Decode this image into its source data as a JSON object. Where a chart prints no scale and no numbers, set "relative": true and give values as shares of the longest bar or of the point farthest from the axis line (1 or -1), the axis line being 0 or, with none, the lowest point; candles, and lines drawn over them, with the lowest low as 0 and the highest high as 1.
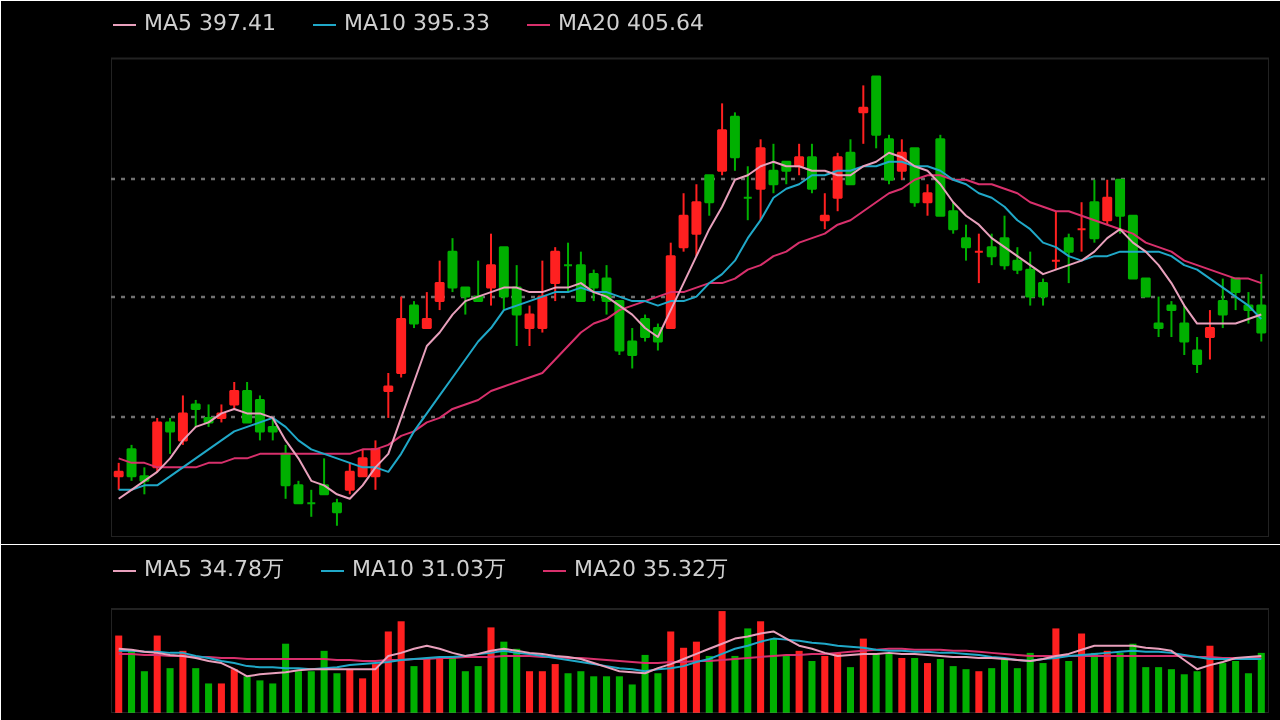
{
  "chart_data": [
    {
      "type": "candlestick",
      "relative": true,
      "grid": "y",
      "legend": "top left",
      "categories": [
        null,
        null,
        null,
        null,
        null,
        null,
        null,
        null,
        null,
        null,
        null,
        null,
        null,
        null,
        null,
        null,
        null,
        null,
        null,
        null,
        null,
        null,
        null,
        null,
        null,
        null,
        null,
        null,
        null,
        null,
        null,
        null,
        null,
        null,
        null,
        null,
        null,
        null,
        null,
        null,
        null,
        null,
        null,
        null,
        null,
        null,
        null,
        null,
        null,
        null,
        null,
        null,
        null,
        null,
        null,
        null,
        null,
        null,
        null,
        null,
        null,
        null,
        null,
        null,
        null,
        null,
        null,
        null,
        null,
        null,
        null,
        null,
        null,
        null,
        null,
        null,
        null,
        null,
        null,
        null,
        null,
        null,
        null,
        null,
        null,
        null,
        null,
        null,
        null,
        null
      ],
      "ohlc": [
        [
          0.11,
          0.14,
          0.08,
          0.12
        ],
        [
          0.17,
          0.18,
          0.1,
          0.11
        ],
        [
          0.11,
          0.13,
          0.07,
          0.1
        ],
        [
          0.13,
          0.24,
          0.12,
          0.23
        ],
        [
          0.23,
          0.24,
          0.16,
          0.21
        ],
        [
          0.19,
          0.29,
          0.18,
          0.25
        ],
        [
          0.27,
          0.28,
          0.22,
          0.26
        ],
        [
          0.24,
          0.27,
          0.22,
          0.23
        ],
        [
          0.24,
          0.27,
          0.23,
          0.25
        ],
        [
          0.27,
          0.32,
          0.26,
          0.3
        ],
        [
          0.3,
          0.32,
          0.23,
          0.23
        ],
        [
          0.28,
          0.29,
          0.19,
          0.21
        ],
        [
          0.22,
          0.24,
          0.19,
          0.21
        ],
        [
          0.16,
          0.18,
          0.06,
          0.09
        ],
        [
          0.09,
          0.1,
          0.05,
          0.05
        ],
        [
          0.05,
          0.08,
          0.02,
          0.05
        ],
        [
          0.09,
          0.15,
          0.07,
          0.07
        ],
        [
          0.05,
          0.06,
          0,
          0.03
        ],
        [
          0.08,
          0.14,
          0.07,
          0.12
        ],
        [
          0.11,
          0.17,
          0.11,
          0.15
        ],
        [
          0.11,
          0.19,
          0.08,
          0.17
        ],
        [
          0.3,
          0.34,
          0.24,
          0.31
        ],
        [
          0.34,
          0.51,
          0.33,
          0.46
        ],
        [
          0.49,
          0.5,
          0.44,
          0.45
        ],
        [
          0.44,
          0.52,
          0.44,
          0.46
        ],
        [
          0.5,
          0.59,
          0.48,
          0.54
        ],
        [
          0.61,
          0.64,
          0.52,
          0.53
        ],
        [
          0.53,
          0.53,
          0.47,
          0.51
        ],
        [
          0.51,
          0.59,
          0.5,
          0.5
        ],
        [
          0.53,
          0.65,
          0.49,
          0.58
        ],
        [
          0.62,
          0.62,
          0.48,
          0.51
        ],
        [
          0.53,
          0.58,
          0.4,
          0.47
        ],
        [
          0.44,
          0.49,
          0.4,
          0.47
        ],
        [
          0.44,
          0.59,
          0.43,
          0.51
        ],
        [
          0.54,
          0.62,
          0.5,
          0.61
        ],
        [
          0.58,
          0.63,
          0.52,
          0.58
        ],
        [
          0.58,
          0.61,
          0.5,
          0.5
        ],
        [
          0.56,
          0.57,
          0.5,
          0.53
        ],
        [
          0.55,
          0.58,
          0.47,
          0.5
        ],
        [
          0.5,
          0.5,
          0.38,
          0.39
        ],
        [
          0.41,
          0.44,
          0.35,
          0.38
        ],
        [
          0.46,
          0.47,
          0.41,
          0.42
        ],
        [
          0.44,
          0.45,
          0.39,
          0.41
        ],
        [
          0.44,
          0.63,
          0.44,
          0.6
        ],
        [
          0.62,
          0.74,
          0.61,
          0.69
        ],
        [
          0.65,
          0.76,
          0.6,
          0.72
        ],
        [
          0.78,
          0.78,
          0.69,
          0.72
        ],
        [
          0.79,
          0.94,
          0.78,
          0.88
        ],
        [
          0.91,
          0.92,
          0.79,
          0.82
        ],
        [
          0.73,
          0.8,
          0.68,
          0.73
        ],
        [
          0.75,
          0.86,
          0.68,
          0.84
        ],
        [
          0.79,
          0.85,
          0.74,
          0.76
        ],
        [
          0.81,
          0.81,
          0.76,
          0.79
        ],
        [
          0.8,
          0.85,
          0.78,
          0.82
        ],
        [
          0.82,
          0.85,
          0.74,
          0.75
        ],
        [
          0.68,
          0.74,
          0.66,
          0.69
        ],
        [
          0.73,
          0.83,
          0.7,
          0.82
        ],
        [
          0.83,
          0.86,
          0.76,
          0.76
        ],
        [
          0.92,
          0.98,
          0.85,
          0.93
        ],
        [
          1,
          1,
          0.84,
          0.87
        ],
        [
          0.86,
          0.87,
          0.76,
          0.77
        ],
        [
          0.79,
          0.86,
          0.77,
          0.83
        ],
        [
          0.84,
          0.84,
          0.71,
          0.72
        ],
        [
          0.72,
          0.76,
          0.69,
          0.74
        ],
        [
          0.86,
          0.87,
          0.69,
          0.69
        ],
        [
          0.7,
          0.72,
          0.65,
          0.66
        ],
        [
          0.64,
          0.67,
          0.59,
          0.62
        ],
        [
          0.61,
          0.65,
          0.54,
          0.61
        ],
        [
          0.62,
          0.65,
          0.58,
          0.6
        ],
        [
          0.64,
          0.69,
          0.57,
          0.58
        ],
        [
          0.59,
          0.62,
          0.56,
          0.57
        ],
        [
          0.57,
          0.61,
          0.49,
          0.51
        ],
        [
          0.54,
          0.55,
          0.49,
          0.51
        ],
        [
          0.59,
          0.7,
          0.57,
          0.59
        ],
        [
          0.64,
          0.65,
          0.54,
          0.61
        ],
        [
          0.66,
          0.72,
          0.61,
          0.66
        ],
        [
          0.72,
          0.77,
          0.63,
          0.64
        ],
        [
          0.68,
          0.77,
          0.67,
          0.73
        ],
        [
          0.77,
          0.77,
          0.65,
          0.69
        ],
        [
          0.69,
          0.69,
          0.55,
          0.55
        ],
        [
          0.55,
          0.55,
          0.51,
          0.51
        ],
        [
          0.45,
          0.51,
          0.42,
          0.44
        ],
        [
          0.49,
          0.5,
          0.42,
          0.48
        ],
        [
          0.45,
          0.49,
          0.38,
          0.41
        ],
        [
          0.39,
          0.42,
          0.34,
          0.36
        ],
        [
          0.42,
          0.48,
          0.37,
          0.44
        ],
        [
          0.5,
          0.55,
          0.44,
          0.47
        ],
        [
          0.55,
          0.55,
          0.48,
          0.52
        ],
        [
          0.49,
          0.52,
          0.45,
          0.48
        ],
        [
          0.49,
          0.56,
          0.41,
          0.43
        ]
      ],
      "colors": [
        "#ff2020",
        "#00b000",
        "#00b000",
        "#ff2020",
        "#00b000",
        "#ff2020",
        "#00b000",
        "#00b000",
        "#ff2020",
        "#ff2020",
        "#00b000",
        "#00b000",
        "#00b000",
        "#00b000",
        "#00b000",
        "#00b000",
        "#00b000",
        "#00b000",
        "#ff2020",
        "#ff2020",
        "#ff2020",
        "#ff2020",
        "#ff2020",
        "#00b000",
        "#ff2020",
        "#ff2020",
        "#00b000",
        "#00b000",
        "#00b000",
        "#ff2020",
        "#00b000",
        "#00b000",
        "#ff2020",
        "#ff2020",
        "#ff2020",
        "#00b000",
        "#00b000",
        "#00b000",
        "#00b000",
        "#00b000",
        "#00b000",
        "#00b000",
        "#00b000",
        "#ff2020",
        "#ff2020",
        "#ff2020",
        "#00b000",
        "#ff2020",
        "#00b000",
        "#00b000",
        "#ff2020",
        "#00b000",
        "#00b000",
        "#ff2020",
        "#00b000",
        "#ff2020",
        "#ff2020",
        "#00b000",
        "#ff2020",
        "#00b000",
        "#00b000",
        "#ff2020",
        "#00b000",
        "#ff2020",
        "#00b000",
        "#00b000",
        "#00b000",
        "#ff2020",
        "#00b000",
        "#00b000",
        "#00b000",
        "#00b000",
        "#00b000",
        "#ff2020",
        "#00b000",
        "#ff2020",
        "#00b000",
        "#ff2020",
        "#00b000",
        "#00b000",
        "#00b000",
        "#00b000",
        "#00b000",
        "#00b000",
        "#00b000",
        "#ff2020",
        "#00b000",
        "#00b000",
        "#00b000",
        "#00b000"
      ],
      "series": [
        {
          "name": "MA5 397.41",
          "type": "line",
          "color": "#e8a0bc",
          "values": [
            0.06,
            0.08,
            0.1,
            0.12,
            0.15,
            0.19,
            0.22,
            0.23,
            0.25,
            0.26,
            0.25,
            0.25,
            0.24,
            0.19,
            0.15,
            0.1,
            0.09,
            0.07,
            0.06,
            0.09,
            0.13,
            0.16,
            0.24,
            0.32,
            0.4,
            0.43,
            0.47,
            0.5,
            0.51,
            0.52,
            0.53,
            0.53,
            0.52,
            0.52,
            0.53,
            0.53,
            0.54,
            0.52,
            0.51,
            0.49,
            0.47,
            0.44,
            0.42,
            0.48,
            0.54,
            0.6,
            0.66,
            0.71,
            0.77,
            0.78,
            0.8,
            0.81,
            0.8,
            0.8,
            0.79,
            0.79,
            0.78,
            0.78,
            0.8,
            0.81,
            0.83,
            0.82,
            0.8,
            0.79,
            0.76,
            0.72,
            0.69,
            0.67,
            0.64,
            0.62,
            0.6,
            0.58,
            0.56,
            0.57,
            0.58,
            0.59,
            0.61,
            0.64,
            0.66,
            0.63,
            0.61,
            0.58,
            0.54,
            0.49,
            0.45,
            0.45,
            0.45,
            0.45,
            0.46,
            0.47
          ]
        },
        {
          "name": "MA10 395.33",
          "type": "line",
          "color": "#20a8c8",
          "values": [
            0.08,
            0.08,
            0.09,
            0.09,
            0.11,
            0.13,
            0.15,
            0.17,
            0.19,
            0.21,
            0.22,
            0.23,
            0.24,
            0.22,
            0.19,
            0.17,
            0.16,
            0.15,
            0.14,
            0.13,
            0.13,
            0.12,
            0.16,
            0.21,
            0.25,
            0.29,
            0.33,
            0.37,
            0.41,
            0.44,
            0.48,
            0.49,
            0.5,
            0.51,
            0.52,
            0.52,
            0.53,
            0.52,
            0.52,
            0.51,
            0.5,
            0.5,
            0.49,
            0.5,
            0.5,
            0.51,
            0.54,
            0.56,
            0.59,
            0.64,
            0.68,
            0.73,
            0.75,
            0.76,
            0.78,
            0.78,
            0.79,
            0.79,
            0.8,
            0.8,
            0.81,
            0.81,
            0.8,
            0.8,
            0.79,
            0.77,
            0.76,
            0.74,
            0.73,
            0.71,
            0.68,
            0.66,
            0.63,
            0.62,
            0.6,
            0.59,
            0.6,
            0.6,
            0.61,
            0.61,
            0.61,
            0.61,
            0.6,
            0.58,
            0.57,
            0.55,
            0.53,
            0.51,
            0.49,
            0.46
          ]
        },
        {
          "name": "MA20 405.64",
          "type": "line",
          "color": "#d8306c",
          "values": [
            0.15,
            0.14,
            0.14,
            0.13,
            0.13,
            0.13,
            0.13,
            0.14,
            0.14,
            0.15,
            0.15,
            0.16,
            0.16,
            0.16,
            0.16,
            0.16,
            0.16,
            0.16,
            0.16,
            0.17,
            0.17,
            0.18,
            0.2,
            0.21,
            0.23,
            0.24,
            0.26,
            0.27,
            0.28,
            0.3,
            0.31,
            0.32,
            0.33,
            0.34,
            0.37,
            0.4,
            0.43,
            0.45,
            0.46,
            0.48,
            0.49,
            0.5,
            0.51,
            0.52,
            0.52,
            0.53,
            0.54,
            0.54,
            0.55,
            0.57,
            0.58,
            0.6,
            0.61,
            0.63,
            0.64,
            0.65,
            0.67,
            0.68,
            0.7,
            0.72,
            0.74,
            0.75,
            0.77,
            0.78,
            0.78,
            0.77,
            0.77,
            0.76,
            0.76,
            0.75,
            0.74,
            0.72,
            0.71,
            0.7,
            0.7,
            0.69,
            0.68,
            0.67,
            0.66,
            0.65,
            0.63,
            0.62,
            0.61,
            0.59,
            0.58,
            0.57,
            0.56,
            0.55,
            0.55,
            0.54
          ]
        }
      ]
    },
    {
      "type": "bar",
      "relative": true,
      "legend": "top left",
      "categories": [
        null,
        null,
        null,
        null,
        null,
        null,
        null,
        null,
        null,
        null,
        null,
        null,
        null,
        null,
        null,
        null,
        null,
        null,
        null,
        null,
        null,
        null,
        null,
        null,
        null,
        null,
        null,
        null,
        null,
        null,
        null,
        null,
        null,
        null,
        null,
        null,
        null,
        null,
        null,
        null,
        null,
        null,
        null,
        null,
        null,
        null,
        null,
        null,
        null,
        null,
        null,
        null,
        null,
        null,
        null,
        null,
        null,
        null,
        null,
        null,
        null,
        null,
        null,
        null,
        null,
        null,
        null,
        null,
        null,
        null,
        null,
        null,
        null,
        null,
        null,
        null,
        null,
        null,
        null,
        null,
        null,
        null,
        null,
        null,
        null,
        null,
        null,
        null,
        null,
        null
      ],
      "values": [
        0.76,
        0.61,
        0.41,
        0.76,
        0.44,
        0.61,
        0.44,
        0.29,
        0.29,
        0.43,
        0.36,
        0.32,
        0.29,
        0.68,
        0.41,
        0.41,
        0.61,
        0.39,
        0.43,
        0.34,
        0.48,
        0.8,
        0.9,
        0.46,
        0.54,
        0.54,
        0.56,
        0.41,
        0.46,
        0.84,
        0.7,
        0.63,
        0.41,
        0.41,
        0.48,
        0.39,
        0.41,
        0.36,
        0.36,
        0.36,
        0.28,
        0.57,
        0.39,
        0.8,
        0.64,
        0.7,
        0.56,
        1,
        0.56,
        0.83,
        0.9,
        0.73,
        0.56,
        0.61,
        0.51,
        0.56,
        0.59,
        0.45,
        0.73,
        0.58,
        0.58,
        0.54,
        0.54,
        0.49,
        0.53,
        0.46,
        0.43,
        0.41,
        0.44,
        0.53,
        0.44,
        0.59,
        0.49,
        0.83,
        0.51,
        0.78,
        0.59,
        0.61,
        0.59,
        0.68,
        0.45,
        0.45,
        0.43,
        0.38,
        0.41,
        0.66,
        0.49,
        0.51,
        0.39,
        0.59
      ],
      "colors": [
        "#ff2020",
        "#00b000",
        "#00b000",
        "#ff2020",
        "#00b000",
        "#ff2020",
        "#00b000",
        "#00b000",
        "#ff2020",
        "#ff2020",
        "#00b000",
        "#00b000",
        "#00b000",
        "#00b000",
        "#00b000",
        "#00b000",
        "#00b000",
        "#00b000",
        "#ff2020",
        "#ff2020",
        "#ff2020",
        "#ff2020",
        "#ff2020",
        "#00b000",
        "#ff2020",
        "#ff2020",
        "#00b000",
        "#00b000",
        "#00b000",
        "#ff2020",
        "#00b000",
        "#00b000",
        "#ff2020",
        "#ff2020",
        "#ff2020",
        "#00b000",
        "#00b000",
        "#00b000",
        "#00b000",
        "#00b000",
        "#00b000",
        "#00b000",
        "#00b000",
        "#ff2020",
        "#ff2020",
        "#ff2020",
        "#00b000",
        "#ff2020",
        "#00b000",
        "#00b000",
        "#ff2020",
        "#00b000",
        "#00b000",
        "#ff2020",
        "#00b000",
        "#ff2020",
        "#ff2020",
        "#00b000",
        "#ff2020",
        "#00b000",
        "#00b000",
        "#ff2020",
        "#00b000",
        "#ff2020",
        "#00b000",
        "#00b000",
        "#00b000",
        "#ff2020",
        "#00b000",
        "#00b000",
        "#00b000",
        "#00b000",
        "#00b000",
        "#ff2020",
        "#00b000",
        "#ff2020",
        "#00b000",
        "#ff2020",
        "#00b000",
        "#00b000",
        "#00b000",
        "#00b000",
        "#00b000",
        "#00b000",
        "#00b000",
        "#ff2020",
        "#00b000",
        "#00b000",
        "#00b000",
        "#00b000"
      ],
      "series": [
        {
          "name": "MA5 34.78万",
          "type": "line",
          "color": "#e8a0bc",
          "values": [
            0.63,
            0.62,
            0.6,
            0.59,
            0.57,
            0.56,
            0.54,
            0.51,
            0.49,
            0.43,
            0.36,
            0.38,
            0.39,
            0.4,
            0.42,
            0.43,
            0.43,
            0.43,
            0.43,
            0.43,
            0.43,
            0.56,
            0.59,
            0.63,
            0.66,
            0.63,
            0.59,
            0.56,
            0.58,
            0.61,
            0.63,
            0.61,
            0.59,
            0.58,
            0.56,
            0.55,
            0.53,
            0.49,
            0.45,
            0.41,
            0.4,
            0.39,
            0.44,
            0.48,
            0.53,
            0.58,
            0.63,
            0.68,
            0.73,
            0.75,
            0.78,
            0.8,
            0.73,
            0.66,
            0.63,
            0.59,
            0.56,
            0.57,
            0.58,
            0.58,
            0.59,
            0.58,
            0.58,
            0.57,
            0.56,
            0.55,
            0.55,
            0.54,
            0.54,
            0.53,
            0.52,
            0.51,
            0.53,
            0.56,
            0.58,
            0.62,
            0.66,
            0.66,
            0.66,
            0.66,
            0.64,
            0.63,
            0.61,
            0.52,
            0.43,
            0.47,
            0.5,
            0.54,
            0.55,
            0.56
          ]
        },
        {
          "name": "MA10 31.03万",
          "type": "line",
          "color": "#20a8c8",
          "values": [
            0.61,
            0.61,
            0.6,
            0.6,
            0.59,
            0.59,
            0.56,
            0.54,
            0.51,
            0.49,
            0.46,
            0.45,
            0.45,
            0.44,
            0.44,
            0.43,
            0.44,
            0.45,
            0.47,
            0.48,
            0.49,
            0.5,
            0.52,
            0.53,
            0.54,
            0.55,
            0.55,
            0.56,
            0.58,
            0.59,
            0.61,
            0.59,
            0.58,
            0.56,
            0.54,
            0.52,
            0.5,
            0.48,
            0.46,
            0.44,
            0.43,
            0.41,
            0.43,
            0.44,
            0.46,
            0.5,
            0.53,
            0.58,
            0.63,
            0.66,
            0.7,
            0.73,
            0.72,
            0.71,
            0.69,
            0.68,
            0.66,
            0.65,
            0.64,
            0.62,
            0.61,
            0.61,
            0.6,
            0.6,
            0.59,
            0.59,
            0.58,
            0.57,
            0.55,
            0.54,
            0.52,
            0.51,
            0.53,
            0.54,
            0.56,
            0.57,
            0.58,
            0.59,
            0.6,
            0.61,
            0.6,
            0.6,
            0.59,
            0.57,
            0.55,
            0.53,
            0.53,
            0.53,
            0.53,
            0.53
          ]
        },
        {
          "name": "MA20 35.32万",
          "type": "line",
          "color": "#d8306c",
          "values": [
            0.58,
            0.58,
            0.57,
            0.57,
            0.56,
            0.56,
            0.55,
            0.55,
            0.54,
            0.54,
            0.53,
            0.53,
            0.53,
            0.53,
            0.53,
            0.53,
            0.53,
            0.52,
            0.52,
            0.51,
            0.51,
            0.52,
            0.52,
            0.53,
            0.53,
            0.54,
            0.54,
            0.55,
            0.55,
            0.55,
            0.56,
            0.56,
            0.56,
            0.55,
            0.55,
            0.54,
            0.54,
            0.53,
            0.52,
            0.51,
            0.5,
            0.49,
            0.49,
            0.5,
            0.5,
            0.51,
            0.51,
            0.52,
            0.53,
            0.54,
            0.55,
            0.56,
            0.57,
            0.57,
            0.58,
            0.58,
            0.59,
            0.6,
            0.61,
            0.62,
            0.63,
            0.63,
            0.62,
            0.62,
            0.62,
            0.61,
            0.61,
            0.6,
            0.59,
            0.58,
            0.57,
            0.56,
            0.56,
            0.56,
            0.56,
            0.56,
            0.56,
            0.56,
            0.56,
            0.56,
            0.56,
            0.56,
            0.56,
            0.56,
            0.55,
            0.55,
            0.54,
            0.54,
            0.54,
            0.54
          ]
        }
      ]
    }
  ]
}
